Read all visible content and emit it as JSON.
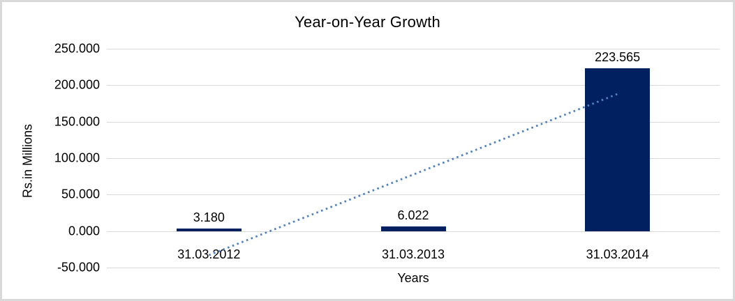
{
  "chart_data": {
    "type": "bar",
    "title": "Year-on-Year Growth",
    "xlabel": "Years",
    "ylabel": "Rs.in Millions",
    "categories": [
      "31.03.2012",
      "31.03.2013",
      "31.03.2014"
    ],
    "values": [
      3.18,
      6.022,
      223.565
    ],
    "data_labels": [
      "3.180",
      "6.022",
      "223.565"
    ],
    "yticks": [
      -50,
      0,
      50,
      100,
      150,
      200,
      250
    ],
    "ytick_labels": [
      "-50.000",
      "0.000",
      "50.000",
      "100.000",
      "150.000",
      "200.000",
      "250.000"
    ],
    "ylim": [
      -50,
      250
    ],
    "grid": true,
    "legend": false,
    "trendline": {
      "type": "linear",
      "style": "dotted",
      "start": {
        "category_index": 0,
        "value": -33
      },
      "end": {
        "category_index": 2,
        "value": 188
      }
    },
    "colors": {
      "bar": "#002060",
      "trendline": "#4f81bd",
      "gridline": "#d9d9d9",
      "frame_border": "#d9d9d9",
      "text": "#000000"
    }
  }
}
